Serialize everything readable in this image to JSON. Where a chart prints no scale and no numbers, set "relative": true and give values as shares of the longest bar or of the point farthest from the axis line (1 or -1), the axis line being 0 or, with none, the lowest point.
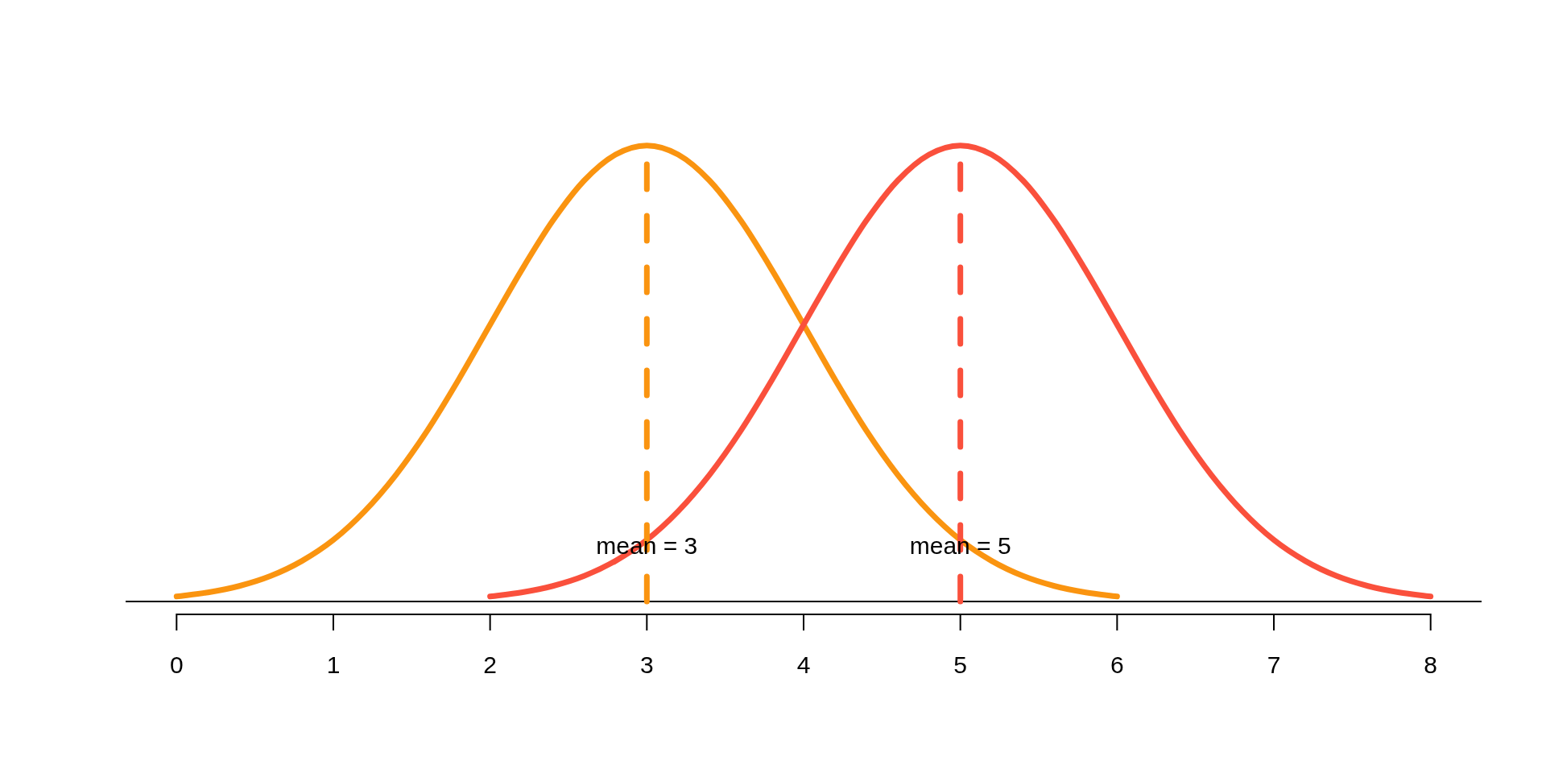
{
  "chart_data": {
    "type": "line",
    "relative": true,
    "series": [
      {
        "color": "#fa9410",
        "x": [
          0,
          0.2,
          0.4,
          0.6,
          0.8,
          1,
          1.2,
          1.4,
          1.6,
          1.8,
          2,
          2.2,
          2.4,
          2.6,
          2.8,
          3,
          3.2,
          3.4,
          3.6,
          3.8,
          4,
          4.2,
          4.4,
          4.6,
          4.8,
          5,
          5.2,
          5.4,
          5.6,
          5.8,
          6
        ],
        "values": [
          0.011,
          0.02,
          0.034,
          0.056,
          0.089,
          0.135,
          0.198,
          0.278,
          0.375,
          0.487,
          0.607,
          0.726,
          0.835,
          0.923,
          0.98,
          1,
          0.98,
          0.923,
          0.835,
          0.726,
          0.607,
          0.487,
          0.375,
          0.278,
          0.198,
          0.135,
          0.089,
          0.056,
          0.034,
          0.02,
          0.011
        ]
      },
      {
        "color": "#fa503c",
        "x": [
          2,
          2.2,
          2.4,
          2.6,
          2.8,
          3,
          3.2,
          3.4,
          3.6,
          3.8,
          4,
          4.2,
          4.4,
          4.6,
          4.8,
          5,
          5.2,
          5.4,
          5.6,
          5.8,
          6,
          6.2,
          6.4,
          6.6,
          6.8,
          7,
          7.2,
          7.4,
          7.6,
          7.8,
          8
        ],
        "values": [
          0.011,
          0.02,
          0.034,
          0.056,
          0.089,
          0.135,
          0.198,
          0.278,
          0.375,
          0.487,
          0.607,
          0.726,
          0.835,
          0.923,
          0.98,
          1,
          0.98,
          0.923,
          0.835,
          0.726,
          0.607,
          0.487,
          0.375,
          0.278,
          0.198,
          0.135,
          0.089,
          0.056,
          0.034,
          0.02,
          0.011
        ]
      }
    ],
    "xlim": [
      -0.32,
      8.32
    ],
    "xticks": [
      0,
      1,
      2,
      3,
      4,
      5,
      6,
      7,
      8
    ],
    "ref_lines": [
      {
        "axis": "x",
        "value": 3,
        "label": "mean = 3",
        "color": "#fa9410",
        "line_style": "dashed"
      },
      {
        "axis": "x",
        "value": 5,
        "label": "mean = 5",
        "color": "#fa503c",
        "line_style": "dashed"
      }
    ]
  }
}
